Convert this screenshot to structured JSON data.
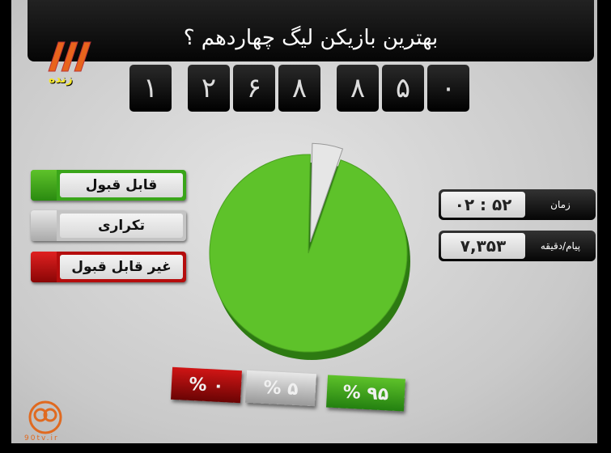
{
  "title": "بهترین بازیکن لیگ چهاردهم ؟",
  "channel": {
    "logo_text": "زنده",
    "brand_color": "#e8641c"
  },
  "counter": {
    "digits": [
      "۱",
      "۲",
      "۶",
      "۸",
      "۸",
      "۵",
      "۰"
    ]
  },
  "legend": [
    {
      "label": "قابل قبول",
      "color": "#3aa51a"
    },
    {
      "label": "تکراری",
      "color": "#bdbdbd"
    },
    {
      "label": "غیر قابل قبول",
      "color": "#b50d0d"
    }
  ],
  "stats": {
    "time": {
      "label": "زمان",
      "value": "۰۲ : ۵۲"
    },
    "rate": {
      "label": "پیام/دقیقه",
      "value": "۷,۳۵۳"
    }
  },
  "chart_data": {
    "type": "pie",
    "categories": [
      "قابل قبول",
      "تکراری",
      "غیر قابل قبول"
    ],
    "values": [
      95,
      5,
      0
    ],
    "value_labels": [
      "% ۹۵",
      "% ۵",
      "% ۰"
    ],
    "colors": [
      "#5ec22a",
      "#e6e6e6",
      "#b50d0d"
    ]
  },
  "watermark": {
    "text": "90tv.ir"
  }
}
